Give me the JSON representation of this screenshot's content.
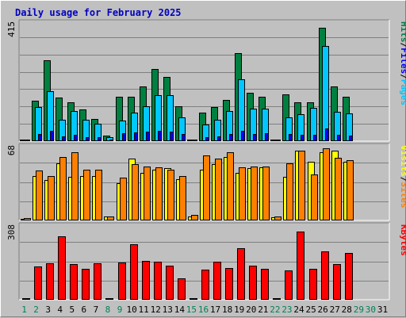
{
  "chart_data": {
    "type": "bar",
    "title": "Daily usage for February 2025",
    "days": [
      "1",
      "2",
      "3",
      "4",
      "5",
      "6",
      "7",
      "8",
      "9",
      "10",
      "11",
      "12",
      "13",
      "14",
      "15",
      "16",
      "17",
      "18",
      "19",
      "20",
      "21",
      "22",
      "23",
      "24",
      "25",
      "26",
      "27",
      "28",
      "29",
      "30",
      "31"
    ],
    "weekend_days": [
      "1",
      "2",
      "8",
      "9",
      "15",
      "16",
      "22",
      "23",
      "29",
      "30"
    ],
    "panels": [
      {
        "name": "hits-files-pages",
        "max_label": "415",
        "ylim": [
          0,
          415
        ],
        "legend": [
          {
            "label": "Pages",
            "color": "#00c8ff"
          },
          {
            "label": "Files",
            "color": "#0000ff"
          },
          {
            "label": "Hits",
            "color": "#008040"
          }
        ],
        "series": [
          {
            "name": "Hits",
            "color": "#008040",
            "values": [
              5,
              145,
              289,
              155,
              138,
              113,
              78,
              19,
              159,
              159,
              196,
              258,
              229,
              125,
              5,
              103,
              120,
              148,
              313,
              173,
              159,
              5,
              167,
              139,
              139,
              405,
              196,
              159,
              0,
              0,
              0
            ]
          },
          {
            "name": "Files",
            "color": "#00c8ff",
            "values": [
              3,
              120,
              178,
              75,
              108,
              77,
              61,
              14,
              74,
              102,
              124,
              164,
              163,
              85,
              4,
              58,
              75,
              107,
              219,
              116,
              115,
              4,
              84,
              96,
              118,
              340,
              104,
              99,
              0,
              0,
              0
            ]
          },
          {
            "name": "Pages",
            "color": "#0000ff",
            "values": [
              1,
              25,
              36,
              17,
              23,
              14,
              15,
              4,
              28,
              31,
              33,
              36,
              35,
              24,
              1,
              15,
              17,
              24,
              38,
              25,
              28,
              1,
              24,
              23,
              23,
              44,
              23,
              21,
              0,
              0,
              0
            ]
          }
        ]
      },
      {
        "name": "visits-sites",
        "max_label": "68",
        "ylim": [
          0,
          68
        ],
        "legend": [
          {
            "label": "Sites",
            "color": "#ff8000"
          },
          {
            "label": "Visits",
            "color": "#ffff00"
          }
        ],
        "series": [
          {
            "name": "Visits",
            "color": "#ffff00",
            "values": [
              1,
              42,
              38,
              54,
              41,
              42,
              42,
              4,
              35,
              58,
              45,
              48,
              49,
              39,
              4,
              48,
              53,
              60,
              45,
              49,
              50,
              3,
              41,
              66,
              55,
              64,
              66,
              55,
              0,
              0,
              0
            ]
          },
          {
            "name": "Sites",
            "color": "#ff8000",
            "values": [
              2,
              47,
              42,
              60,
              64,
              48,
              48,
              4,
              40,
              53,
              51,
              50,
              48,
              42,
              5,
              61,
              58,
              64,
              50,
              51,
              51,
              4,
              54,
              66,
              43,
              68,
              59,
              57,
              0,
              0,
              0
            ]
          }
        ]
      },
      {
        "name": "kbytes",
        "max_label": "308",
        "ylim": [
          0,
          308
        ],
        "legend": [
          {
            "label": "KBytes",
            "color": "#ff0000"
          }
        ],
        "series": [
          {
            "name": "KBytes",
            "color": "#ff0000",
            "values": [
              5,
              142,
              155,
              272,
              153,
              131,
              155,
              6,
              159,
              236,
              166,
              161,
              146,
              90,
              3,
              129,
              162,
              135,
              219,
              146,
              131,
              4,
              125,
              292,
              132,
              206,
              151,
              198,
              0,
              0,
              0
            ]
          }
        ]
      }
    ]
  }
}
